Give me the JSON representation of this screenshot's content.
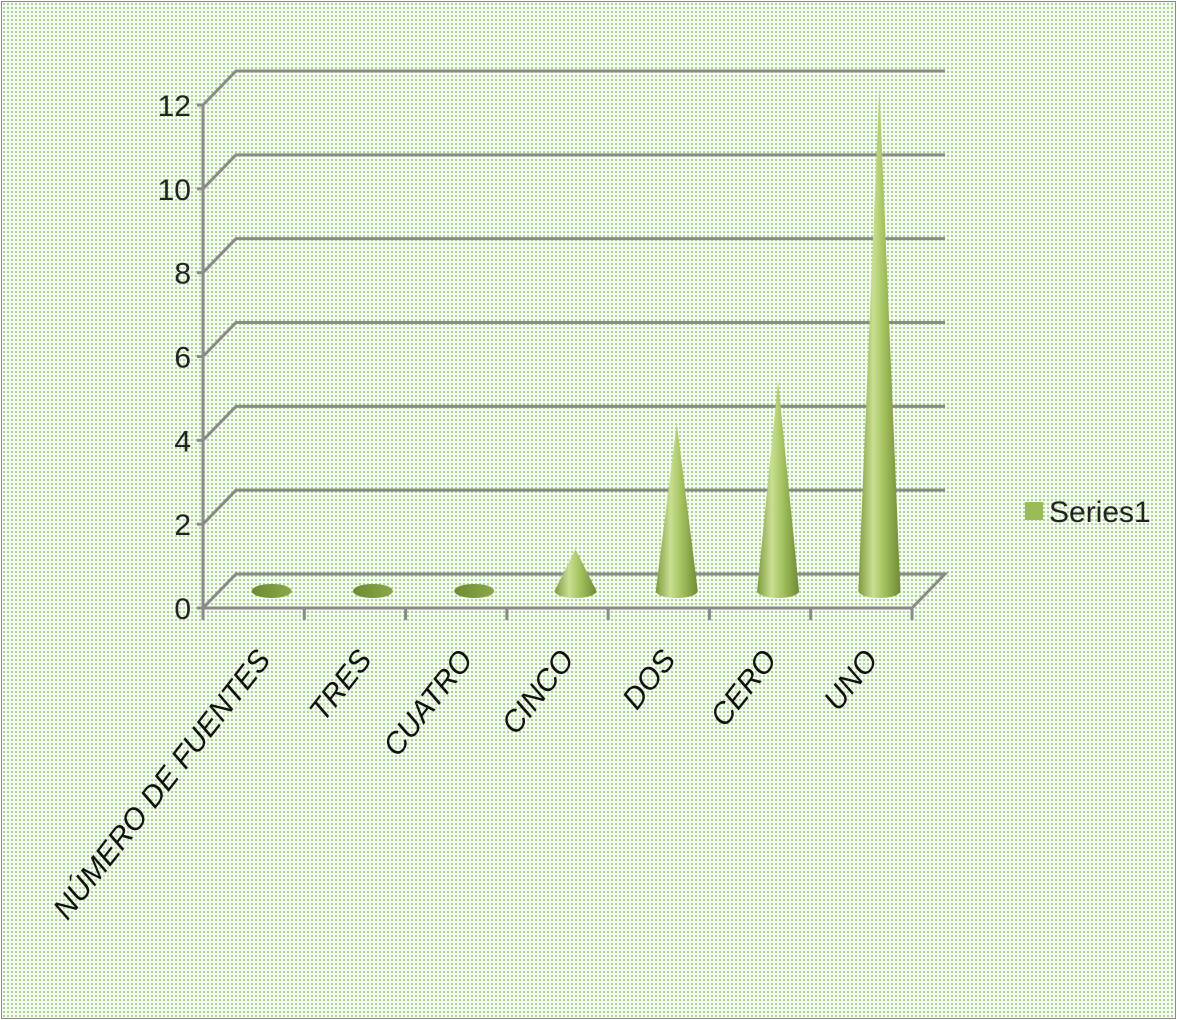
{
  "chart_data": {
    "type": "bar",
    "shape": "cone-3d",
    "categories": [
      "NÚMERO DE FUENTES",
      "TRES",
      "CUATRO",
      "CINCO",
      "DOS",
      "CERO",
      "UNO"
    ],
    "series": [
      {
        "name": "Series1",
        "values": [
          0,
          0,
          0,
          1,
          4,
          5,
          12
        ],
        "color": "#9bbb59"
      }
    ],
    "yticks": [
      "0",
      "2",
      "4",
      "6",
      "8",
      "10",
      "12"
    ],
    "ylim": [
      0,
      12
    ],
    "grid": true,
    "legend": "right"
  }
}
